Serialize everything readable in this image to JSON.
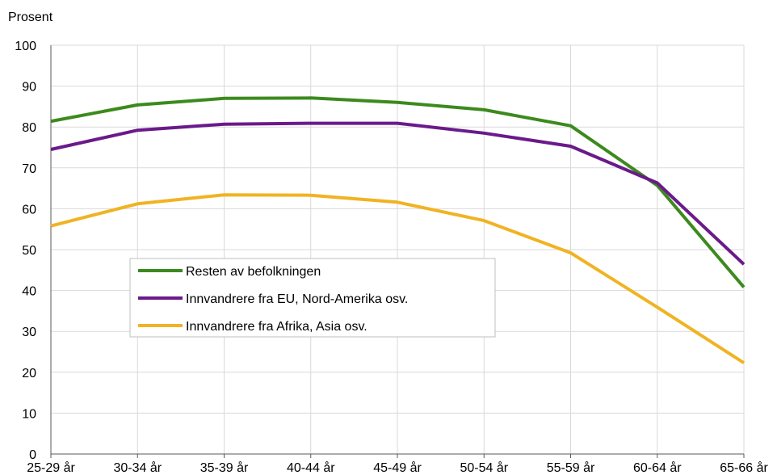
{
  "chart_data": {
    "type": "line",
    "ylabel": "Prosent",
    "ylim": [
      0,
      100
    ],
    "yticks": [
      0,
      10,
      20,
      30,
      40,
      50,
      60,
      70,
      80,
      90,
      100
    ],
    "grid": true,
    "categories": [
      "25-29 år",
      "30-34 år",
      "35-39 år",
      "40-44 år",
      "45-49 år",
      "50-54 år",
      "55-59 år",
      "60-64 år",
      "65-66 år"
    ],
    "series": [
      {
        "name": "Resten av befolkningen",
        "color": "#3c8a1e",
        "values": [
          81.4,
          85.4,
          87.0,
          87.1,
          86.0,
          84.2,
          80.3,
          65.7,
          40.8
        ]
      },
      {
        "name": "Innvandrere fra EU, Nord-Amerika osv.",
        "color": "#6a1a8a",
        "values": [
          74.5,
          79.2,
          80.7,
          80.9,
          80.9,
          78.5,
          75.3,
          66.3,
          46.4
        ]
      },
      {
        "name": "Innvandrere fra Afrika, Asia osv.",
        "color": "#f0b323",
        "values": [
          55.8,
          61.2,
          63.4,
          63.3,
          61.6,
          57.1,
          49.2,
          35.9,
          22.3
        ]
      }
    ],
    "legend_position": "inside-left"
  }
}
